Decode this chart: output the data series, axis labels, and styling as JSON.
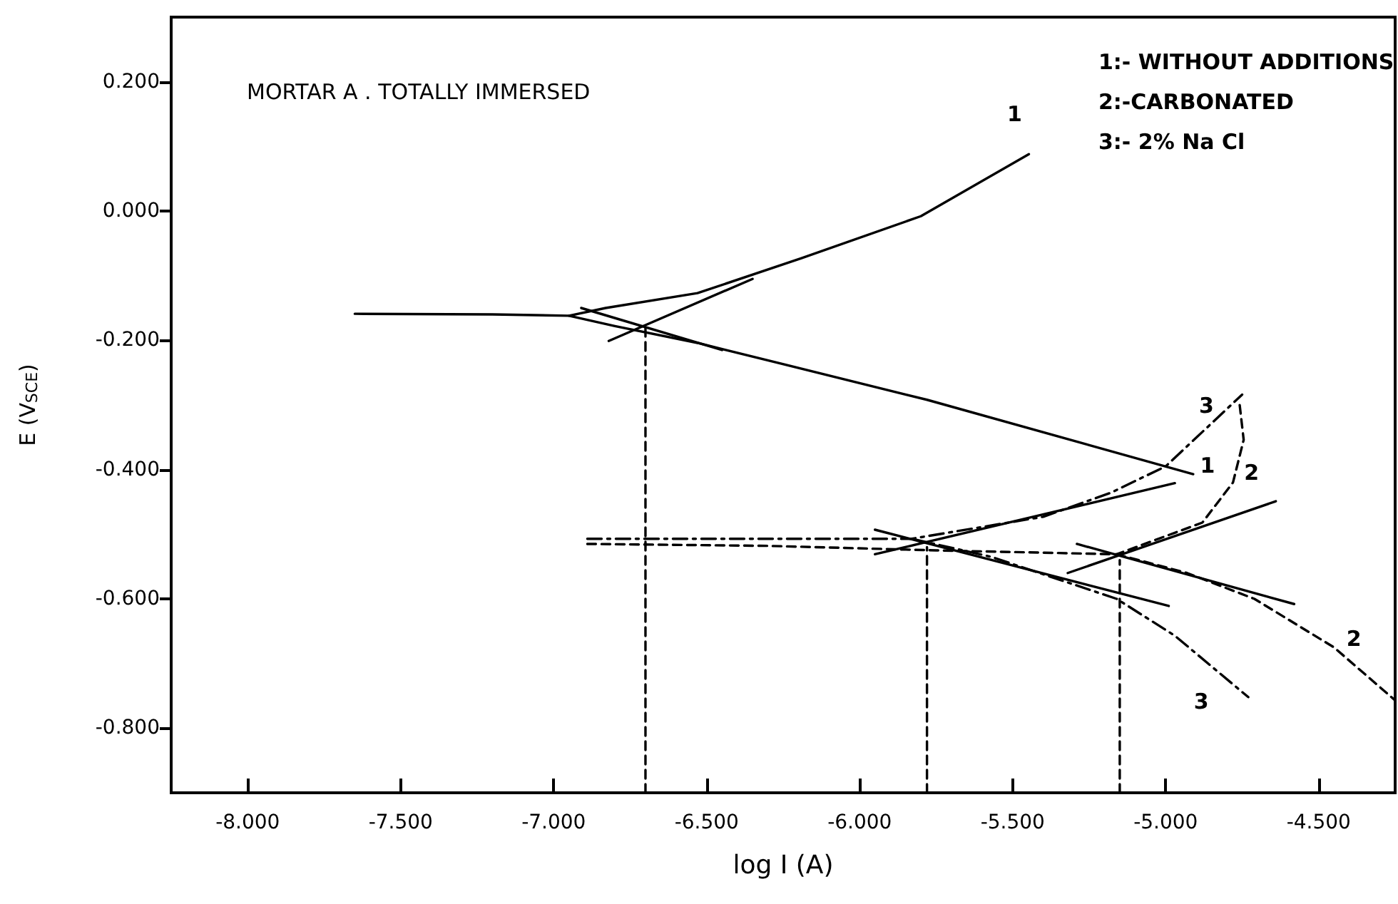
{
  "chart_data": {
    "type": "line",
    "title": "MORTAR A . TOTALLY IMMERSED",
    "xlabel": "log I (A)",
    "ylabel": "E (V$_{SCE}$)",
    "xlim": [
      -8.25,
      -4.25
    ],
    "ylim": [
      -0.9,
      0.3
    ],
    "xticks": [
      {
        "value": -8,
        "label": "-8.000"
      },
      {
        "value": -7.5,
        "label": "-7.500"
      },
      {
        "value": -7,
        "label": "-7.000"
      },
      {
        "value": -6.5,
        "label": "-6.500"
      },
      {
        "value": -6,
        "label": "-6.000"
      },
      {
        "value": -5.5,
        "label": "-5.500"
      },
      {
        "value": -5,
        "label": "-5.000"
      },
      {
        "value": -4.5,
        "label": "-4.500"
      }
    ],
    "yticks": [
      {
        "value": 0.2,
        "label": "0.200"
      },
      {
        "value": 0,
        "label": "0.000"
      },
      {
        "value": -0.2,
        "label": "-0.200"
      },
      {
        "value": -0.4,
        "label": "-0.400"
      },
      {
        "value": -0.6,
        "label": "-0.600"
      },
      {
        "value": -0.8,
        "label": "-0.800"
      }
    ],
    "grid": false,
    "marker": "none",
    "series": [
      {
        "color": "#000000",
        "line_style": "solid",
        "x": [
          -7.65,
          -7.2,
          -6.95,
          -6.83,
          -6.53,
          -6.19,
          -5.8,
          -5.447
        ],
        "values": [
          -0.159,
          -0.16,
          -0.162,
          -0.15,
          -0.127,
          -0.073,
          -0.008,
          0.088
        ]
      },
      {
        "color": "#000000",
        "line_style": "solid",
        "x": [
          -6.95,
          -6.8,
          -6.53,
          -5.78,
          -4.91
        ],
        "values": [
          -0.162,
          -0.178,
          -0.204,
          -0.292,
          -0.407
        ]
      },
      {
        "color": "#000000",
        "line_style": "dashed",
        "x": [
          -6.89,
          -6.3,
          -5.75,
          -5.16,
          -4.88,
          -4.78,
          -4.745,
          -4.76
        ],
        "values": [
          -0.515,
          -0.518,
          -0.525,
          -0.531,
          -0.482,
          -0.42,
          -0.354,
          -0.292
        ]
      },
      {
        "color": "#000000",
        "line_style": "dashed",
        "x": [
          -5.16,
          -4.93,
          -4.71,
          -4.45,
          -4.25
        ],
        "values": [
          -0.531,
          -0.56,
          -0.6,
          -0.675,
          -0.757
        ]
      },
      {
        "color": "#000000",
        "line_style": "dashdot",
        "x": [
          -6.89,
          -6.3,
          -5.83,
          -5.4,
          -5.18,
          -5.0,
          -4.75
        ],
        "values": [
          -0.507,
          -0.507,
          -0.507,
          -0.473,
          -0.436,
          -0.395,
          -0.284
        ]
      },
      {
        "color": "#000000",
        "line_style": "dashdot",
        "x": [
          -5.83,
          -5.57,
          -5.16,
          -4.97,
          -4.73
        ],
        "values": [
          -0.507,
          -0.535,
          -0.6,
          -0.657,
          -0.752
        ]
      },
      {
        "color": "#000000",
        "line_style": "solid",
        "x": [
          -6.82,
          -6.35
        ],
        "values": [
          -0.201,
          -0.105
        ]
      },
      {
        "color": "#000000",
        "line_style": "solid",
        "x": [
          -6.91,
          -6.45
        ],
        "values": [
          -0.15,
          -0.215
        ]
      },
      {
        "color": "#000000",
        "line_style": "solid",
        "x": [
          -5.95,
          -4.97
        ],
        "values": [
          -0.531,
          -0.421
        ]
      },
      {
        "color": "#000000",
        "line_style": "solid",
        "x": [
          -5.95,
          -4.99
        ],
        "values": [
          -0.493,
          -0.611
        ]
      },
      {
        "color": "#000000",
        "line_style": "solid",
        "x": [
          -5.32,
          -4.64
        ],
        "values": [
          -0.56,
          -0.449
        ]
      },
      {
        "color": "#000000",
        "line_style": "solid",
        "x": [
          -5.29,
          -4.58
        ],
        "values": [
          -0.515,
          -0.608
        ]
      },
      {
        "color": "#000000",
        "line_style": "dashed",
        "x": [
          -6.7,
          -6.7
        ],
        "values": [
          -0.9,
          -0.18
        ]
      },
      {
        "color": "#000000",
        "line_style": "dashed",
        "x": [
          -5.78,
          -5.78
        ],
        "values": [
          -0.9,
          -0.52
        ]
      },
      {
        "color": "#000000",
        "line_style": "dashed",
        "x": [
          -5.15,
          -5.15
        ],
        "values": [
          -0.9,
          -0.54
        ]
      }
    ],
    "annotations": [
      "1:- WITHOUT ADDITIONS",
      "2:-CARBONATED",
      "3:- 2% Na Cl",
      {
        "text": "1",
        "x": -5.447,
        "y": 0.088
      },
      {
        "text": "1",
        "x": -4.91,
        "y": -0.407
      },
      {
        "text": "3",
        "x": -4.75,
        "y": -0.284
      },
      {
        "text": "2",
        "x": -4.78,
        "y": -0.42
      },
      {
        "text": "2",
        "x": -4.45,
        "y": -0.675
      },
      {
        "text": "3",
        "x": -4.73,
        "y": -0.752
      }
    ]
  }
}
